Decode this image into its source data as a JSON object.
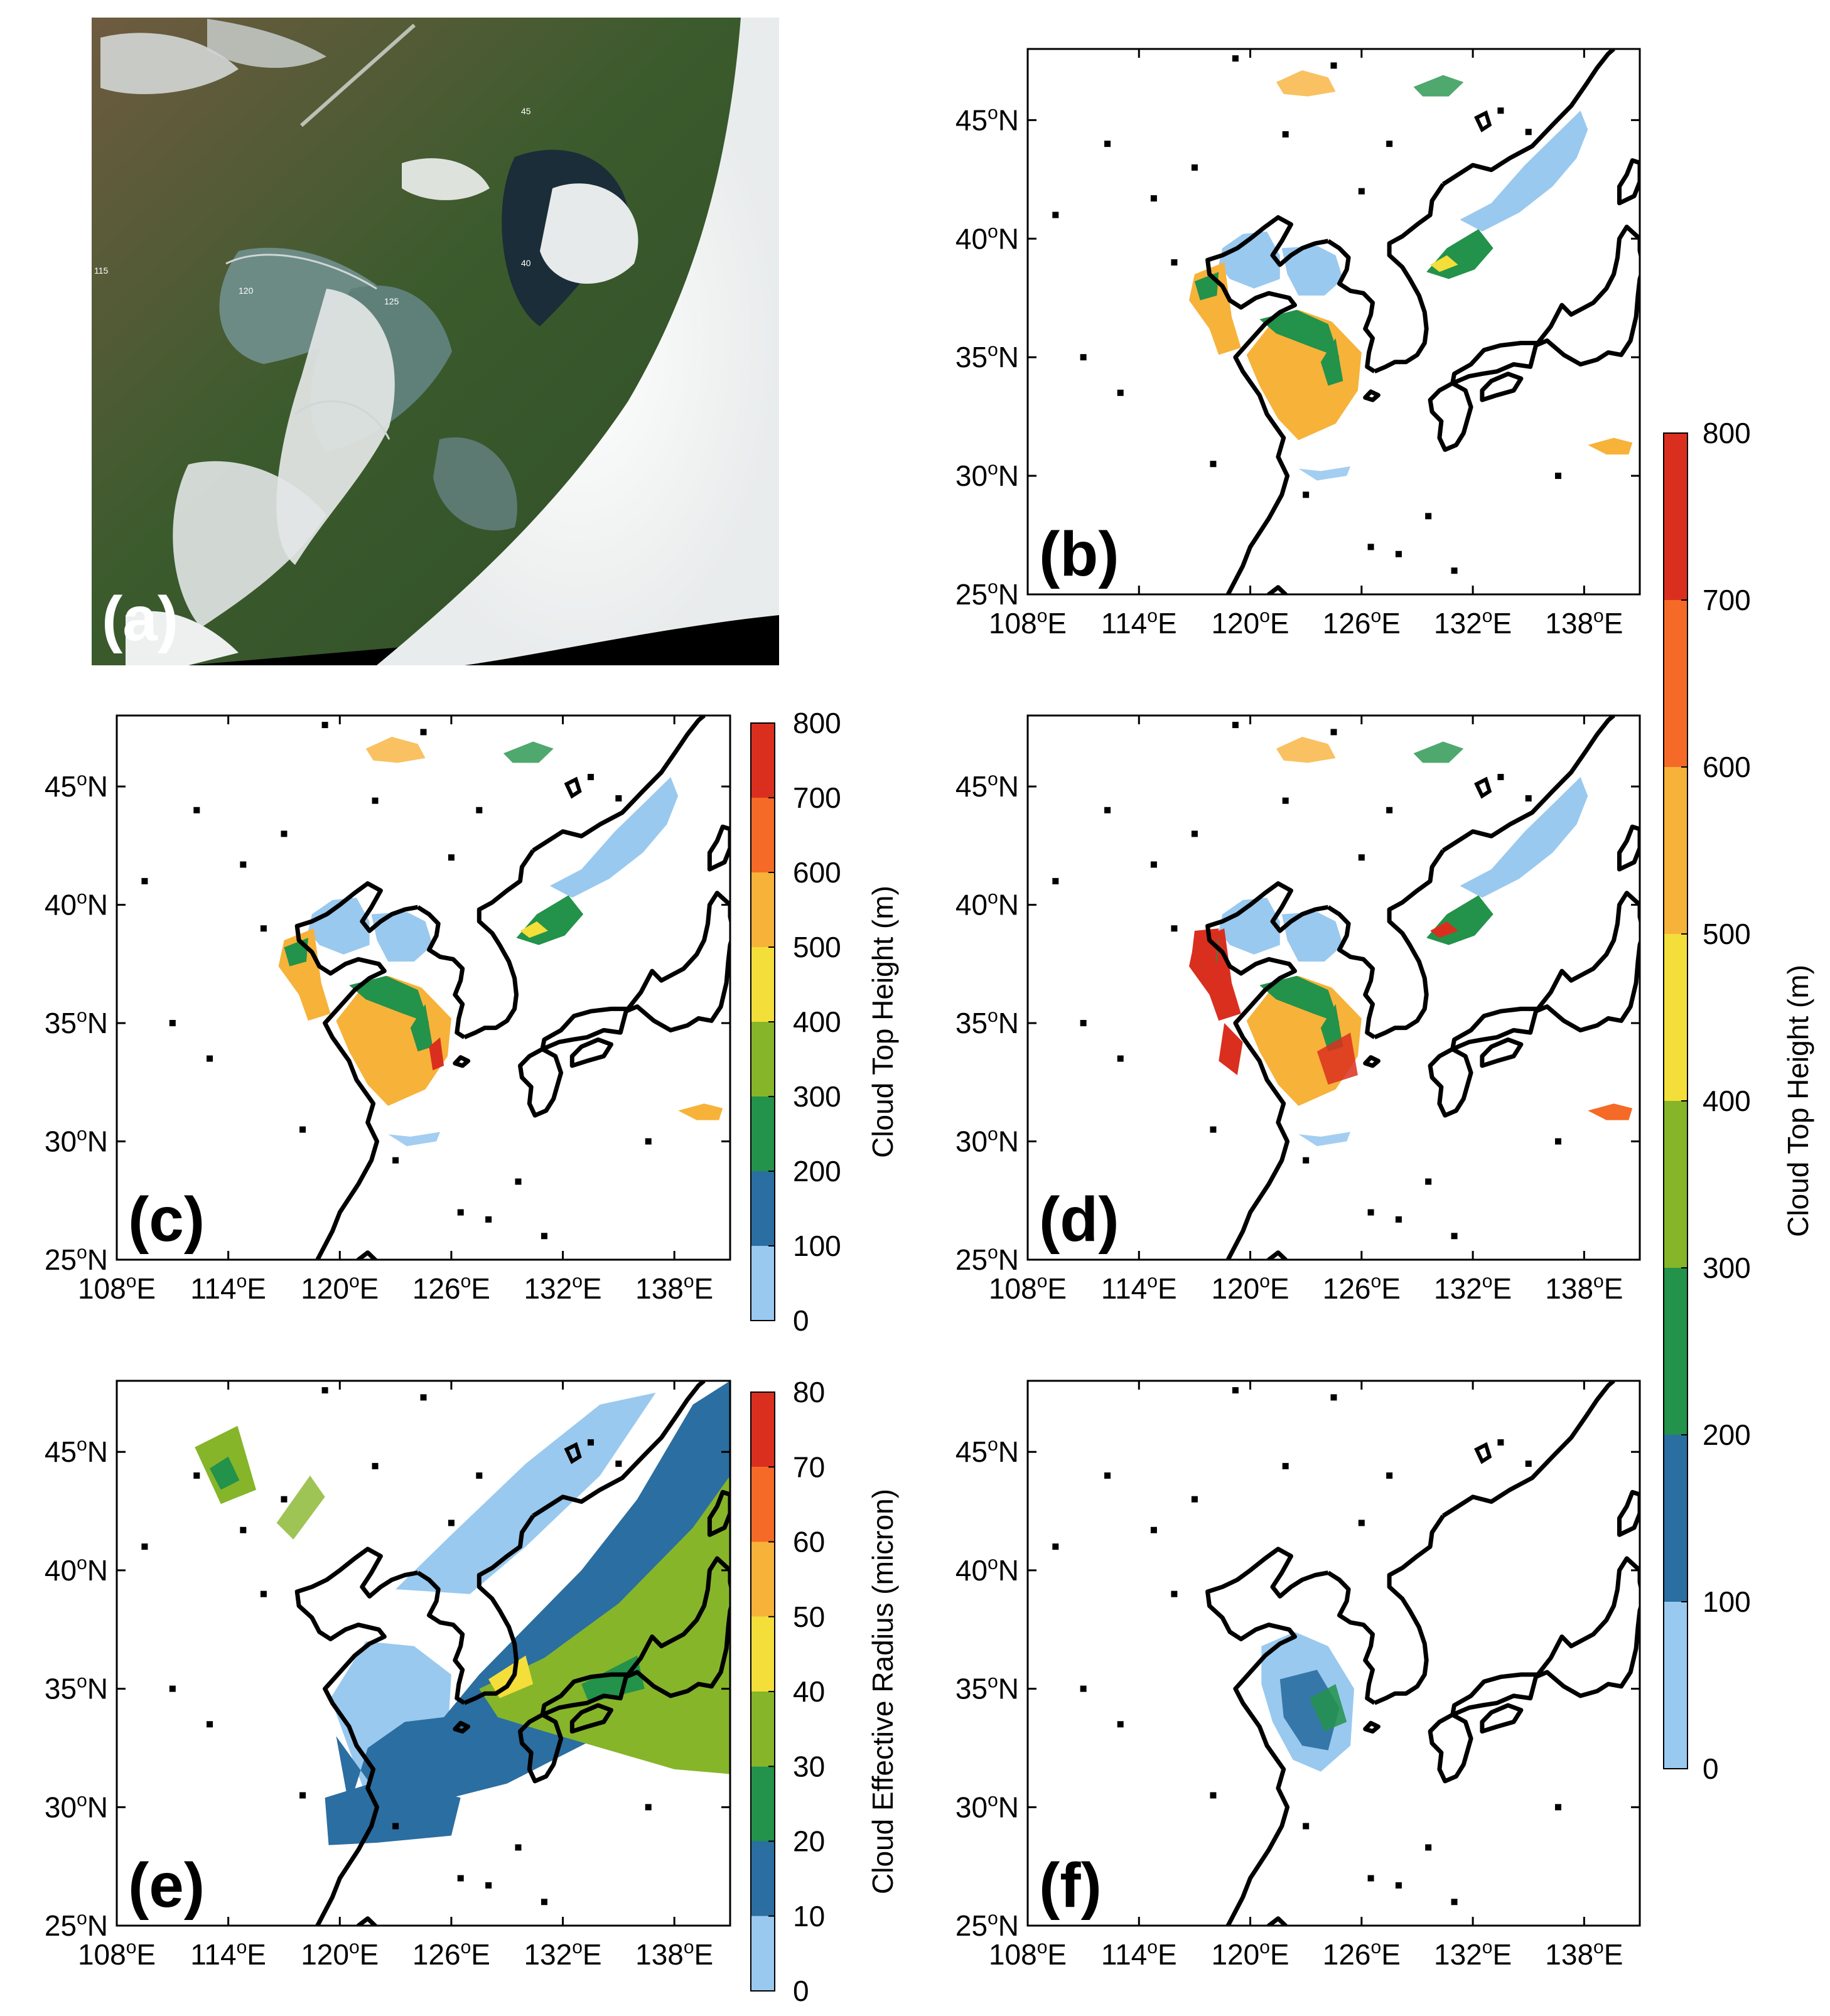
{
  "figure": {
    "panels": [
      {
        "id": "a",
        "label": "(a)",
        "kind": "satellite-true-color"
      },
      {
        "id": "b",
        "label": "(b)",
        "kind": "cloud-top-height"
      },
      {
        "id": "c",
        "label": "(c)",
        "kind": "cloud-top-height"
      },
      {
        "id": "d",
        "label": "(d)",
        "kind": "cloud-top-height"
      },
      {
        "id": "e",
        "label": "(e)",
        "kind": "cloud-effective-radius"
      },
      {
        "id": "f",
        "label": "(f)",
        "kind": "cloud-top-height"
      }
    ],
    "lat_ticks": [
      "45",
      "40",
      "35",
      "30",
      "25"
    ],
    "lon_ticks": [
      "108",
      "114",
      "120",
      "126",
      "132",
      "138"
    ],
    "lat_suffix": "N",
    "lon_suffix": "E",
    "degree_symbol": "o",
    "satellite_grid_labels": [
      "115",
      "120",
      "125",
      "40",
      "45"
    ],
    "colorbars": {
      "cth_title": "Cloud Top Height (m)",
      "cth_ticks": [
        "0",
        "100",
        "200",
        "300",
        "400",
        "500",
        "600",
        "700",
        "800"
      ],
      "cer_title": "Cloud Effective Radius (micron)",
      "cer_ticks": [
        "0",
        "10",
        "20",
        "30",
        "40",
        "50",
        "60",
        "70",
        "80"
      ],
      "colors": [
        "#99c9ef",
        "#2b6ea1",
        "#23924a",
        "#86b52a",
        "#f4de39",
        "#f7b23a",
        "#f56a26",
        "#da2f1f"
      ]
    },
    "map_colors": {
      "coast": "#000000",
      "ocean": "#10222f",
      "land": "#3a5a2c",
      "cloud": "#f3f4f4"
    }
  }
}
